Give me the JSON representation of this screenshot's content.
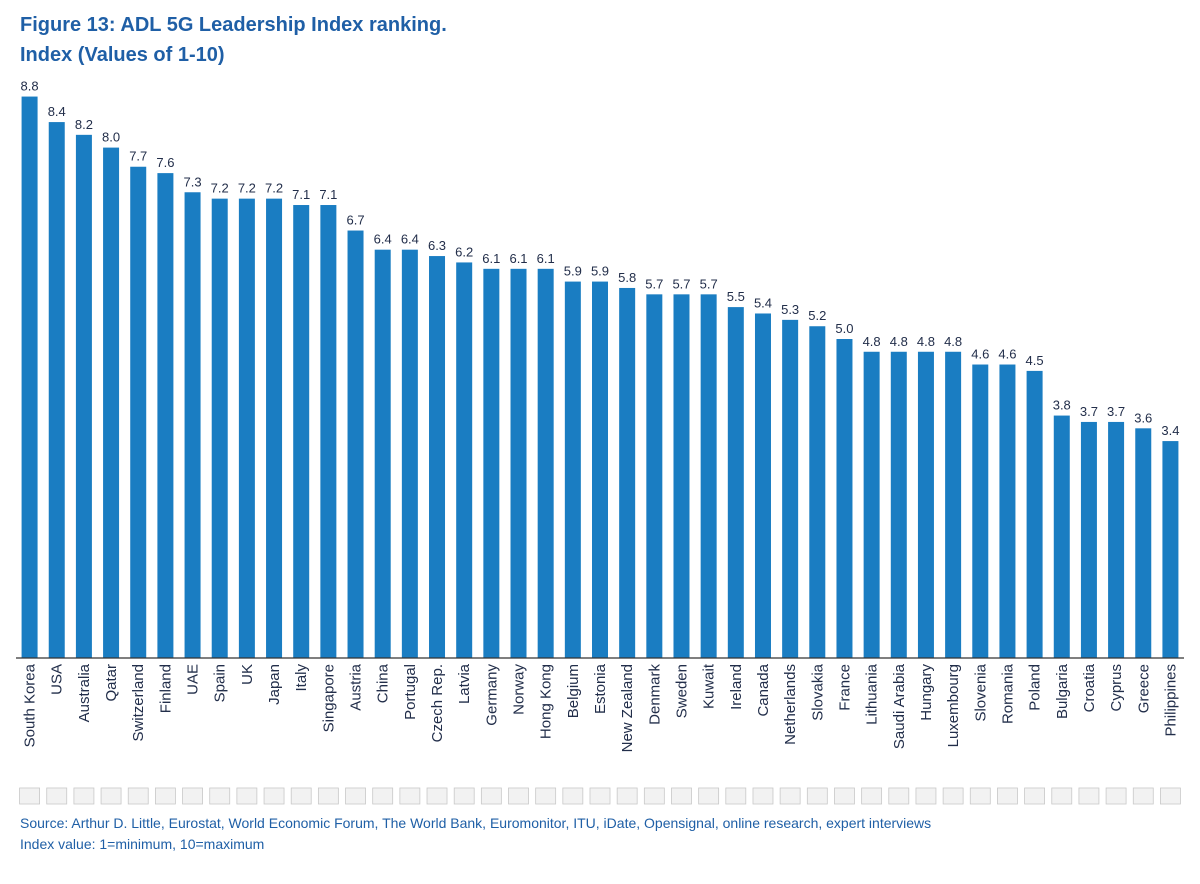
{
  "figure": {
    "title": "Figure 13: ADL 5G Leadership Index ranking.",
    "subtitle": "Index (Values of 1-10)"
  },
  "footer": {
    "source": "Source: Arthur D. Little, Eurostat, World Economic Forum, The World Bank, Euromonitor, ITU, iDate, Opensignal, online research, expert interviews",
    "note": "Index value: 1=minimum, 10=maximum"
  },
  "colors": {
    "bar": "#1a7dc2",
    "text": "#1f5fa6",
    "axis": "#333333"
  },
  "chart_data": {
    "type": "bar",
    "title": "Figure 13: ADL 5G Leadership Index ranking.",
    "subtitle": "Index (Values of 1-10)",
    "xlabel": "",
    "ylabel": "",
    "ylim": [
      0,
      10
    ],
    "grid": false,
    "categories": [
      "South Korea",
      "USA",
      "Australia",
      "Qatar",
      "Switzerland",
      "Finland",
      "UAE",
      "Spain",
      "UK",
      "Japan",
      "Italy",
      "Singapore",
      "Austria",
      "China",
      "Portugal",
      "Czech Rep.",
      "Latvia",
      "Germany",
      "Norway",
      "Hong Kong",
      "Belgium",
      "Estonia",
      "New Zealand",
      "Denmark",
      "Sweden",
      "Kuwait",
      "Ireland",
      "Canada",
      "Netherlands",
      "Slovakia",
      "France",
      "Lithuania",
      "Saudi Arabia",
      "Hungary",
      "Luxembourg",
      "Slovenia",
      "Romania",
      "Poland",
      "Bulgaria",
      "Croatia",
      "Cyprus",
      "Greece",
      "Philippines"
    ],
    "values": [
      8.8,
      8.4,
      8.2,
      8.0,
      7.7,
      7.6,
      7.3,
      7.2,
      7.2,
      7.2,
      7.1,
      7.1,
      6.7,
      6.4,
      6.4,
      6.3,
      6.2,
      6.1,
      6.1,
      6.1,
      5.9,
      5.9,
      5.8,
      5.7,
      5.7,
      5.7,
      5.5,
      5.4,
      5.3,
      5.2,
      5.0,
      4.8,
      4.8,
      4.8,
      4.8,
      4.6,
      4.6,
      4.5,
      3.8,
      3.7,
      3.7,
      3.6,
      3.4
    ],
    "value_labels": [
      "8.8",
      "8.4",
      "8.2",
      "8.0",
      "7.7",
      "7.6",
      "7.3",
      "7.2",
      "7.2",
      "7.2",
      "7.1",
      "7.1",
      "6.7",
      "6.4",
      "6.4",
      "6.3",
      "6.2",
      "6.1",
      "6.1",
      "6.1",
      "5.9",
      "5.9",
      "5.8",
      "5.7",
      "5.7",
      "5.7",
      "5.5",
      "5.4",
      "5.3",
      "5.2",
      "5.0",
      "4.8",
      "4.8",
      "4.8",
      "4.8",
      "4.6",
      "4.6",
      "4.5",
      "3.8",
      "3.7",
      "3.7",
      "3.6",
      "3.4"
    ]
  }
}
